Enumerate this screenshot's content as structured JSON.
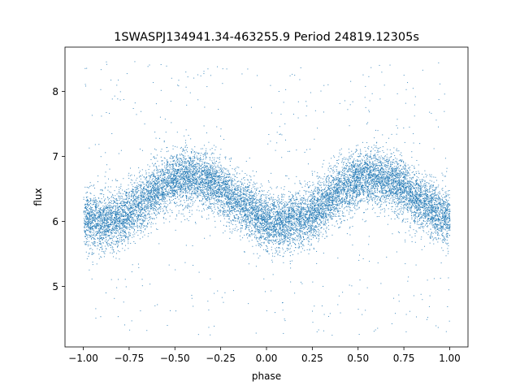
{
  "chart_data": {
    "type": "scatter",
    "title": "1SWASPJ134941.34-463255.9 Period 24819.12305s",
    "xlabel": "phase",
    "ylabel": "flux",
    "xlim": [
      -1.1,
      1.1
    ],
    "ylim": [
      4.07,
      8.68
    ],
    "xticks": [
      -1.0,
      -0.75,
      -0.5,
      -0.25,
      0.0,
      0.25,
      0.5,
      0.75,
      1.0
    ],
    "xtick_labels": [
      "−1.00",
      "−0.75",
      "−0.50",
      "−0.25",
      "0.00",
      "0.25",
      "0.50",
      "0.75",
      "1.00"
    ],
    "yticks": [
      5,
      6,
      7,
      8
    ],
    "ytick_labels": [
      "5",
      "6",
      "7",
      "8"
    ],
    "grid": false,
    "legend": "none",
    "marker_color": "#1f77b4",
    "series": [
      {
        "phase_x": [
          -1.0,
          -0.9,
          -0.8,
          -0.7,
          -0.6,
          -0.5,
          -0.45,
          -0.4,
          -0.3,
          -0.2,
          -0.1,
          0.0,
          0.1,
          0.2,
          0.3,
          0.4,
          0.5,
          0.55,
          0.6,
          0.7,
          0.8,
          0.9,
          1.0
        ],
        "median_flux_y": [
          6.05,
          5.98,
          6.05,
          6.25,
          6.5,
          6.65,
          6.7,
          6.68,
          6.6,
          6.4,
          6.2,
          6.0,
          5.98,
          6.05,
          6.25,
          6.5,
          6.65,
          6.7,
          6.68,
          6.6,
          6.4,
          6.2,
          6.05
        ],
        "core_scatter": 0.35,
        "outlier_range": [
          4.25,
          8.5
        ],
        "point_count": 14000
      }
    ]
  }
}
